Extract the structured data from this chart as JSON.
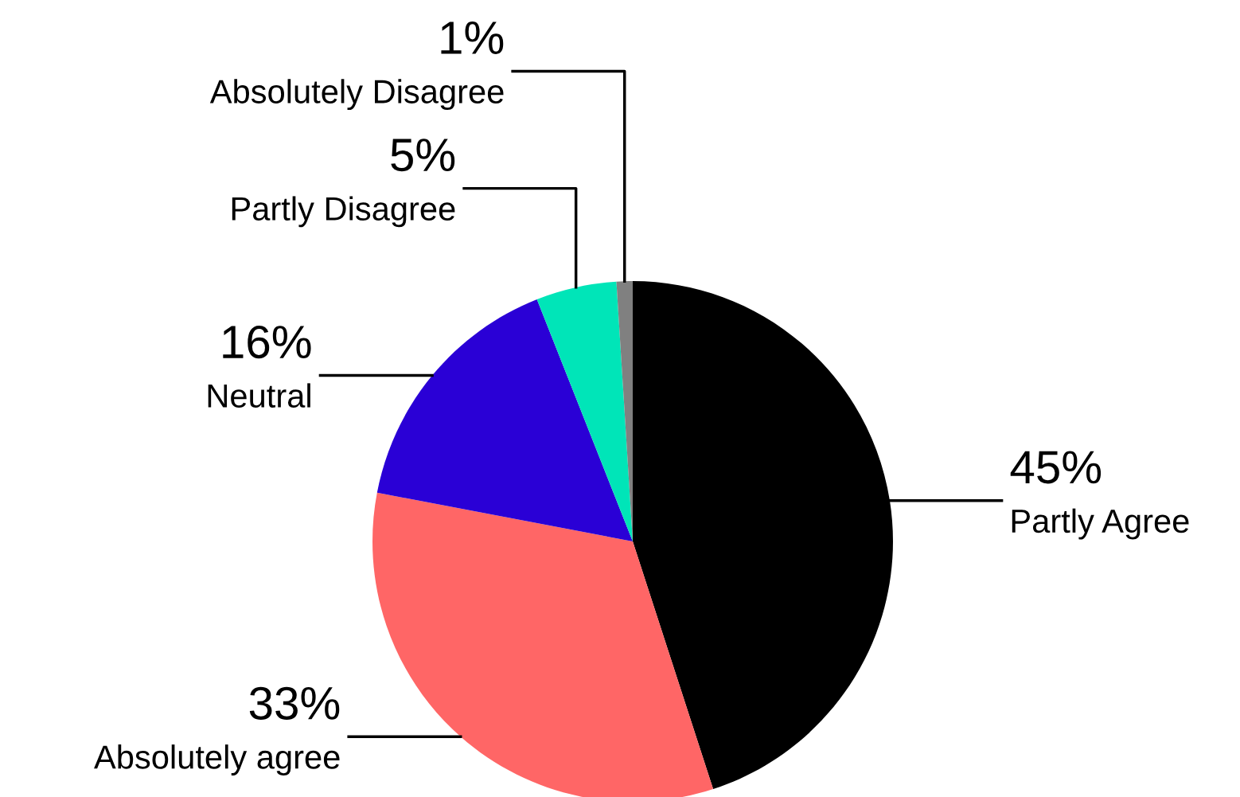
{
  "chart_data": {
    "type": "pie",
    "categories": [
      "Partly Agree",
      "Absolutely agree",
      "Neutral",
      "Partly Disagree",
      "Absolutely Disagree"
    ],
    "values": [
      45,
      33,
      16,
      5,
      1
    ],
    "value_labels": [
      "45%",
      "33%",
      "16%",
      "5%",
      "1%"
    ],
    "colors": [
      "#000000",
      "#ff6666",
      "#2a00d6",
      "#00e5b8",
      "#808080"
    ]
  }
}
